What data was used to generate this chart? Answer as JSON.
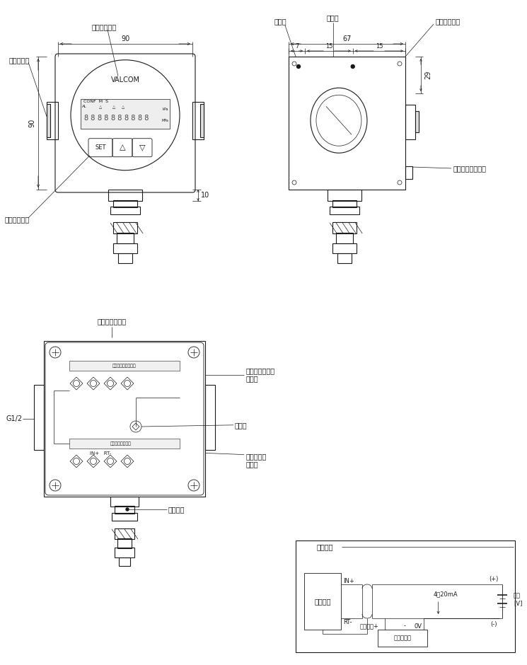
{
  "bg_color": "#ffffff",
  "line_color": "#1a1a1a",
  "annotations": {
    "display": "ディスプレイ",
    "fushiplug": "封止プラグ",
    "set_switch": "設定スイッチ",
    "cover": "カバー",
    "case": "ケース",
    "case_cover": "ケースカバー",
    "vent_filter": "ベントフィルター",
    "case_internal": "ケース内部構造",
    "output_check": "出力チェック用",
    "output_check2": "端子台",
    "earth": "アース",
    "power_output": "電源出力用",
    "power_output2": "端子台",
    "g12": "G1/2",
    "adapter": "アダプタ",
    "output_spec": "出力仕様",
    "amp_part": "アンプ部",
    "in_plus": "IN+",
    "rt_minus": "RT-",
    "shield": "シールド+",
    "minus_label": "-",
    "ov": "0V",
    "receiver": "レシーバー",
    "current": "4～20mA",
    "plus_sign": "(+)",
    "minus_sign": "(-)",
    "power_label": "電源",
    "power_unit": "[V]",
    "dim90_top": "90",
    "dim90_left": "90",
    "dim10": "10",
    "dim67": "67",
    "dim7": "7",
    "dim15a": "15",
    "dim15b": "15",
    "dim29": "29",
    "valcom": "VALCOM",
    "output_check_tb": "出力チェック端子台",
    "power_tb": "電源・出力端子台",
    "in_rt": "IN+   RT-"
  }
}
